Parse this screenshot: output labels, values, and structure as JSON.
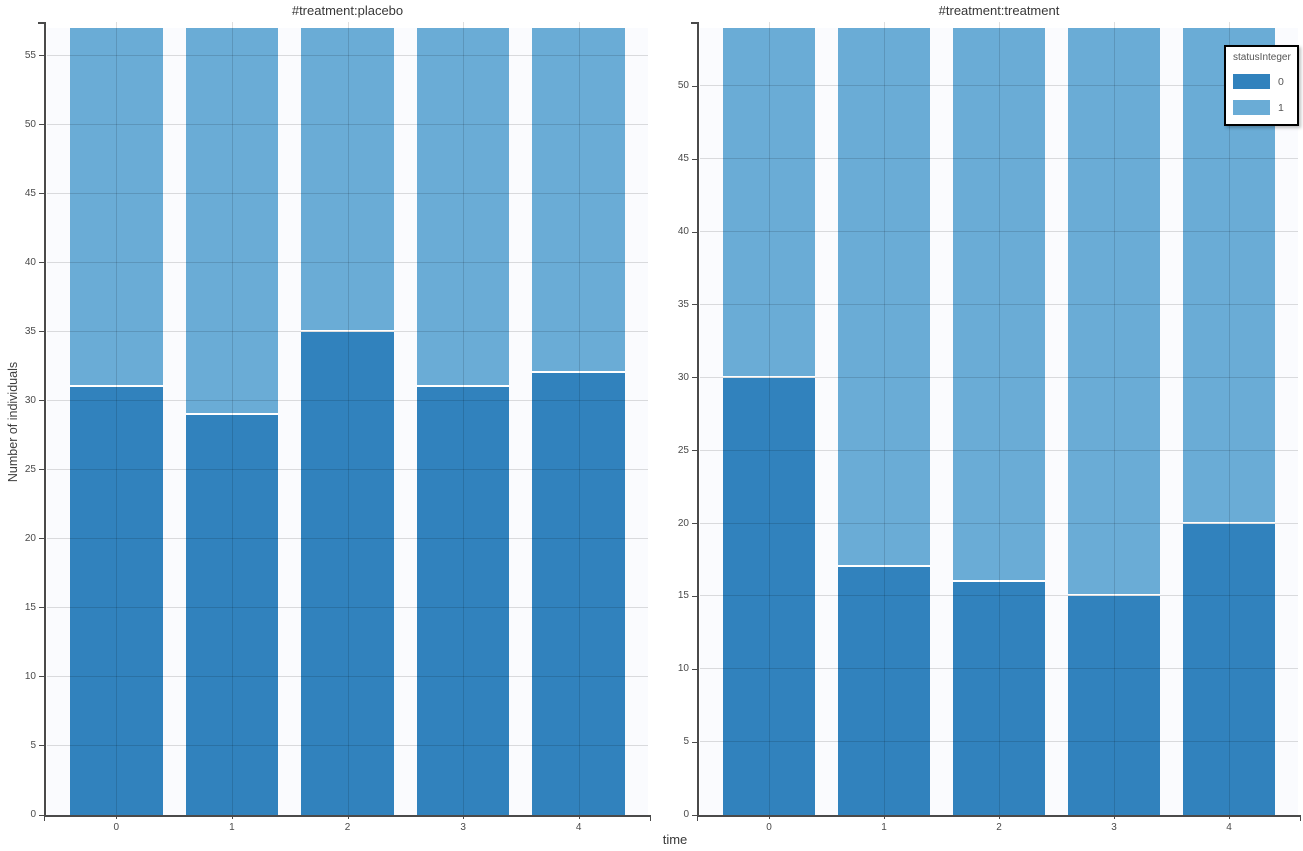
{
  "figure": {
    "x_axis_title": "time",
    "y_axis_title": "Number of individuals",
    "legend": {
      "title": "statusInteger",
      "position": "top-right",
      "entries": [
        {
          "label": "0",
          "color": "#3182bd"
        },
        {
          "label": "1",
          "color": "#6aacd6"
        }
      ]
    },
    "colors": {
      "status_0": "#3182bd",
      "status_1": "#6aacd6",
      "plot_background": "#fafbfe"
    }
  },
  "chart_data": [
    {
      "type": "bar",
      "stacked": true,
      "title": "#treatment:placebo",
      "xlabel": "time",
      "ylabel": "Number of individuals",
      "categories": [
        "0",
        "1",
        "2",
        "3",
        "4"
      ],
      "series": [
        {
          "name": "0",
          "color": "#3182bd",
          "values": [
            31,
            29,
            35,
            31,
            32
          ]
        },
        {
          "name": "1",
          "color": "#6aacd6",
          "values": [
            26,
            28,
            22,
            26,
            25
          ]
        }
      ],
      "totals": [
        57,
        57,
        57,
        57,
        57
      ],
      "ylim": [
        0,
        57
      ],
      "y_ticks": [
        0,
        5,
        10,
        15,
        20,
        25,
        30,
        35,
        40,
        45,
        50,
        55
      ],
      "grid": true,
      "legend_position": "none"
    },
    {
      "type": "bar",
      "stacked": true,
      "title": "#treatment:treatment",
      "xlabel": "time",
      "ylabel": "",
      "categories": [
        "0",
        "1",
        "2",
        "3",
        "4"
      ],
      "series": [
        {
          "name": "0",
          "color": "#3182bd",
          "values": [
            30,
            17,
            16,
            15,
            20
          ]
        },
        {
          "name": "1",
          "color": "#6aacd6",
          "values": [
            24,
            37,
            38,
            39,
            34
          ]
        }
      ],
      "totals": [
        54,
        54,
        54,
        54,
        54
      ],
      "ylim": [
        0,
        54
      ],
      "y_ticks": [
        0,
        5,
        10,
        15,
        20,
        25,
        30,
        35,
        40,
        45,
        50
      ],
      "grid": true,
      "legend_position": "top-right"
    }
  ]
}
